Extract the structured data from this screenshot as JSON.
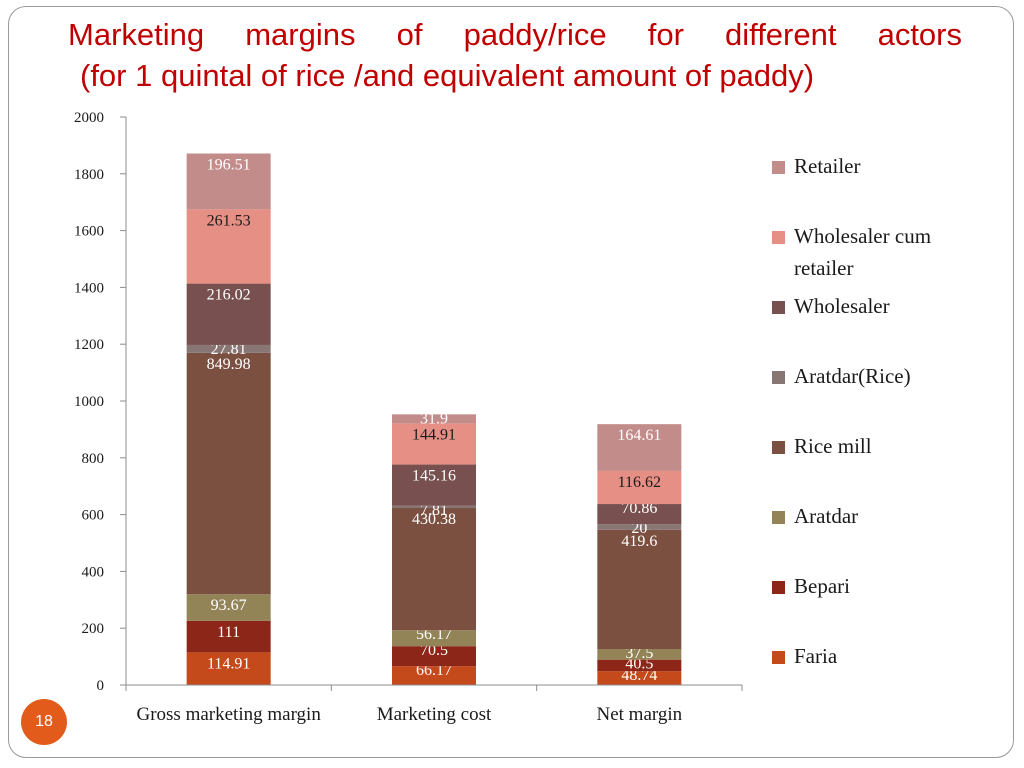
{
  "slide": {
    "title_line1": "Marketing margins of paddy/rice for different actors",
    "title_line2": "(for 1 quintal of rice /and equivalent amount of paddy)",
    "slide_number": "18",
    "title_color": "#c00000",
    "badge_color": "#e35b1b"
  },
  "chart_data": {
    "type": "bar",
    "stacked": true,
    "title": "",
    "xlabel": "",
    "ylabel": "",
    "categories": [
      "Gross marketing margin",
      "Marketing cost",
      "Net margin"
    ],
    "ylim": [
      0,
      2000
    ],
    "yticks": [
      0,
      200,
      400,
      600,
      800,
      1000,
      1200,
      1400,
      1600,
      1800,
      2000
    ],
    "grid": false,
    "legend_position": "right",
    "series": [
      {
        "name": "Faria",
        "color": "#c4491b",
        "values": [
          114.91,
          66.17,
          48.74
        ],
        "labels": [
          "114.91",
          "66.17",
          "48.74"
        ]
      },
      {
        "name": "Bepari",
        "color": "#8c2618",
        "values": [
          111,
          70.5,
          40.5
        ],
        "labels": [
          "111",
          "70.5",
          "40.5"
        ]
      },
      {
        "name": "Aratdar",
        "color": "#938457",
        "values": [
          93.67,
          56.17,
          37.5
        ],
        "labels": [
          "93.67",
          "56.17",
          "37.5"
        ]
      },
      {
        "name": "Rice mill",
        "color": "#7c5040",
        "values": [
          849.98,
          430.38,
          419.6
        ],
        "labels": [
          "849.98",
          "430.38",
          "419.6"
        ]
      },
      {
        "name": "Aratdar(Rice)",
        "color": "#877674",
        "values": [
          27.81,
          7.81,
          20
        ],
        "labels": [
          "27.81",
          "7.81",
          "20"
        ]
      },
      {
        "name": "Wholesaler",
        "color": "#77504f",
        "values": [
          216.02,
          145.16,
          70.86
        ],
        "labels": [
          "216.02",
          "145.16",
          "70.86"
        ]
      },
      {
        "name": "Wholesaler cum retailer",
        "color": "#e68f85",
        "values": [
          261.53,
          144.91,
          116.62
        ],
        "labels": [
          "261.53",
          "144.91",
          "116.62"
        ]
      },
      {
        "name": "Retailer",
        "color": "#c28c8b",
        "values": [
          196.51,
          31.9,
          164.61
        ],
        "labels": [
          "196.51",
          "31.9",
          "164.61"
        ]
      }
    ],
    "legend_order": [
      "Retailer",
      "Wholesaler cum retailer",
      "Wholesaler",
      "Aratdar(Rice)",
      "Rice mill",
      "Aratdar",
      "Bepari",
      "Faria"
    ]
  }
}
